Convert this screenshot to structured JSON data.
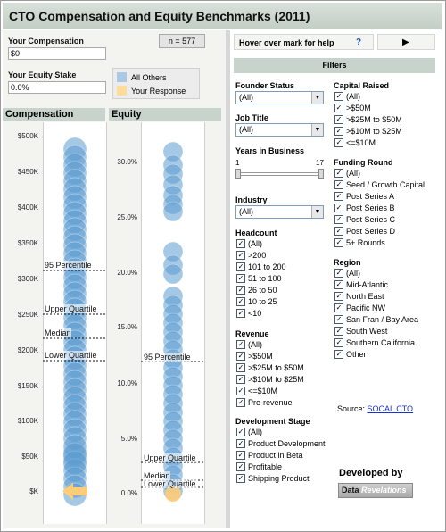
{
  "title": "CTO Compensation and Equity Benchmarks (2011)",
  "inputs": {
    "compensation_label": "Your Compensation",
    "compensation_value": "$0",
    "equity_label": "Your Equity Stake",
    "equity_value": "0.0%",
    "n_count": "n = 577"
  },
  "legend": {
    "all_others": "All Others",
    "your_response": "Your Response",
    "all_others_color": "#5b9bd0",
    "your_response_color": "#ffcc77"
  },
  "charts": {
    "compensation": {
      "header": "Compensation",
      "ticks": [
        "$500K",
        "$450K",
        "$400K",
        "$350K",
        "$300K",
        "$250K",
        "$200K",
        "$150K",
        "$100K",
        "$50K",
        "$K"
      ],
      "reference_lines": [
        "95 Percentile",
        "Upper Quartile",
        "Median",
        "Lower Quartile"
      ]
    },
    "equity": {
      "header": "Equity",
      "ticks": [
        "30.0%",
        "25.0%",
        "20.0%",
        "15.0%",
        "10.0%",
        "5.0%",
        "0.0%"
      ],
      "reference_lines": [
        "95 Percentile",
        "Upper Quartile",
        "Median",
        "Lower Quartile"
      ]
    }
  },
  "toolbar": {
    "help_text": "Hover over mark for help",
    "help_icon": "?",
    "play_icon": "▶"
  },
  "filters": {
    "header": "Filters",
    "founder_status": {
      "title": "Founder Status",
      "value": "(All)"
    },
    "job_title": {
      "title": "Job Title",
      "value": "(All)"
    },
    "years_in_business": {
      "title": "Years in Business",
      "min": "1",
      "max": "17"
    },
    "industry": {
      "title": "Industry",
      "value": "(All)"
    },
    "headcount": {
      "title": "Headcount",
      "options": [
        "(All)",
        ">200",
        "101 to 200",
        "51 to 100",
        "26 to 50",
        "10 to 25",
        "<10"
      ]
    },
    "revenue": {
      "title": "Revenue",
      "options": [
        "(All)",
        ">$50M",
        ">$25M to $50M",
        ">$10M to $25M",
        "<=$10M",
        "Pre-revenue"
      ]
    },
    "development_stage": {
      "title": "Development Stage",
      "options": [
        "(All)",
        "Product Development",
        "Product in Beta",
        "Profitable",
        "Shipping Product"
      ]
    },
    "capital_raised": {
      "title": "Capital Raised",
      "options": [
        "(All)",
        ">$50M",
        ">$25M to $50M",
        ">$10M to $25M",
        "<=$10M"
      ]
    },
    "funding_round": {
      "title": "Funding Round",
      "options": [
        "(All)",
        "Seed / Growth Capital",
        "Post Series A",
        "Post Series B",
        "Post Series C",
        "Post Series D",
        "5+ Rounds"
      ]
    },
    "region": {
      "title": "Region",
      "options": [
        "(All)",
        "Mid-Atlantic",
        "North East",
        "Pacific NW",
        "San Fran / Bay Area",
        "South West",
        "Southern California",
        "Other"
      ]
    }
  },
  "source": {
    "label": "Source:",
    "link": "SOCAL CTO"
  },
  "developed_by": "Developed by",
  "logo": {
    "part1": "Data",
    "part2": "Revelations"
  }
}
